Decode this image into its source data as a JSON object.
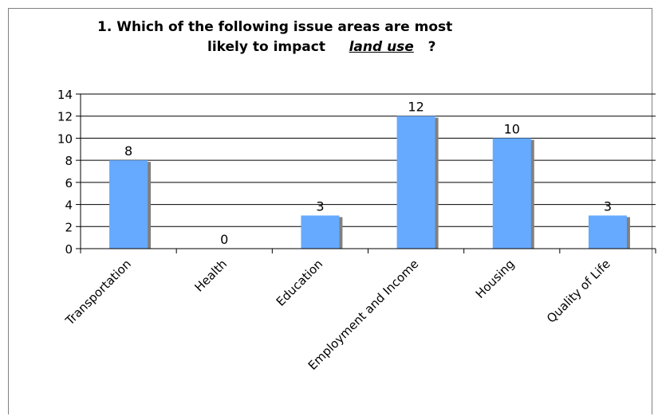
{
  "chart_data": {
    "type": "bar",
    "title_line1": "1. Which of the following issue areas are most",
    "title_line2_prefix": "likely to impact",
    "title_line2_emph": "land use",
    "title_line2_suffix": "?",
    "categories": [
      "Transportation",
      "Health",
      "Education",
      "Employment and Income",
      "Housing",
      "Quality of Life"
    ],
    "values": [
      8,
      0,
      3,
      12,
      10,
      3
    ],
    "ylim": [
      0,
      14
    ],
    "yticks": [
      0,
      2,
      4,
      6,
      8,
      10,
      12,
      14
    ],
    "grid": true,
    "colors": {
      "bar": "#66aaff",
      "bar_shadow": "#808080",
      "grid": "#000000"
    }
  }
}
